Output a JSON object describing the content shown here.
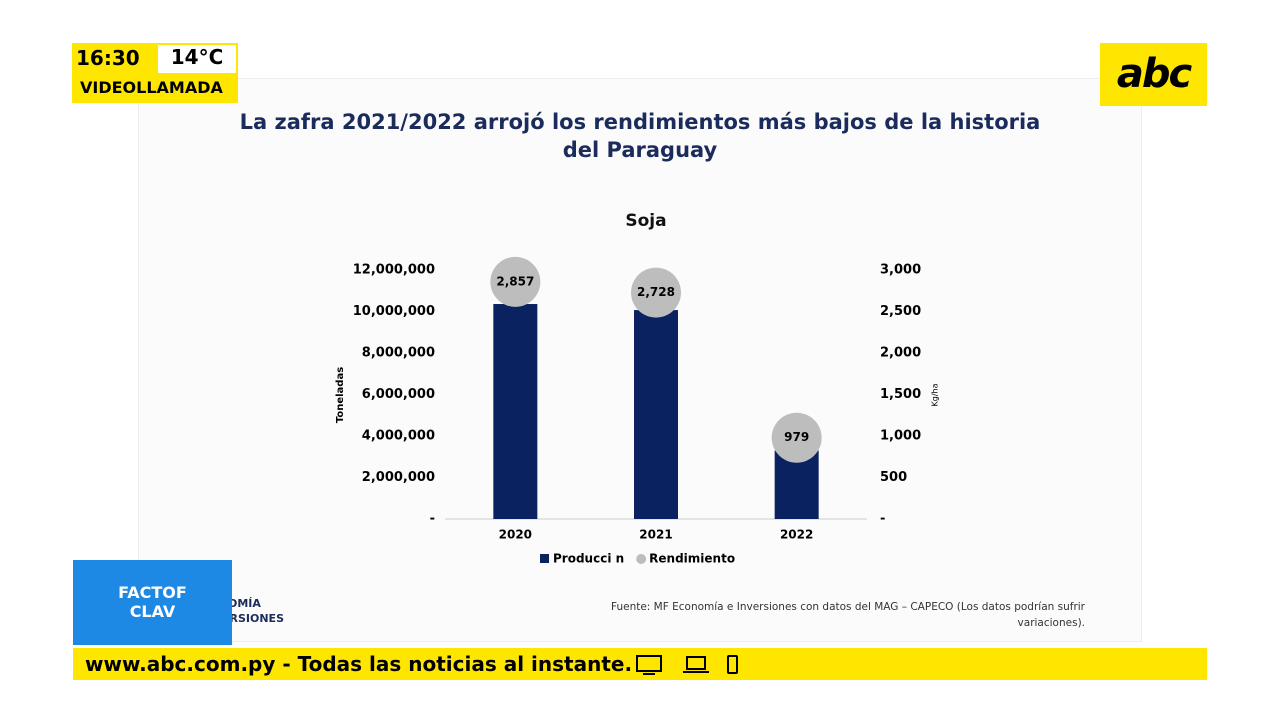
{
  "header": {
    "time": "16:30",
    "temperature": "14°C",
    "tag": "VIDEOLLAMADA",
    "logo": "abc"
  },
  "chart_data": {
    "type": "bar",
    "title": "La zafra 2021/2022 arrojó los rendimientos más bajos de la historia del Paraguay",
    "subtitle": "Soja",
    "y_label": "Toneladas",
    "y2_label": "Kg/ha",
    "categories": [
      "2020",
      "2021",
      "2022"
    ],
    "series": [
      {
        "name": "Producci n",
        "color": "#0b2260",
        "values": [
          10360000,
          10070000,
          3300000
        ]
      },
      {
        "name": "Rendimiento",
        "color": "#bdbdbd",
        "axis": "y2",
        "values": [
          2857,
          2728,
          979
        ],
        "value_labels": [
          "2,857",
          "2,728",
          "979"
        ]
      }
    ],
    "ylim": [
      0,
      12000000
    ],
    "yticks": [
      {
        "value": 0,
        "label": "-"
      },
      {
        "value": 2000000,
        "label": "2,000,000"
      },
      {
        "value": 4000000,
        "label": "4,000,000"
      },
      {
        "value": 6000000,
        "label": "6,000,000"
      },
      {
        "value": 8000000,
        "label": "8,000,000"
      },
      {
        "value": 10000000,
        "label": "10,000,000"
      },
      {
        "value": 12000000,
        "label": "12,000,000"
      }
    ],
    "y2lim": [
      0,
      3000
    ],
    "y2ticks": [
      {
        "value": 0,
        "label": "-"
      },
      500,
      {
        "value": 1000,
        "label": "1,000"
      },
      {
        "value": 1500,
        "label": "1,500"
      },
      {
        "value": 2000,
        "label": "2,000"
      },
      {
        "value": 2500,
        "label": "2,500"
      },
      {
        "value": 3000,
        "label": "3,000"
      }
    ],
    "source": "Fuente: MF Economía e Inversiones con datos del MAG – CAPECO (Los datos podrían sufrir variaciones)."
  },
  "program": {
    "line1": "FACTOF",
    "line2": "CLAV",
    "behind1": "OMÍA",
    "behind2": "ERSIONES"
  },
  "ticker": "www.abc.com.py - Todas las noticias al instante."
}
